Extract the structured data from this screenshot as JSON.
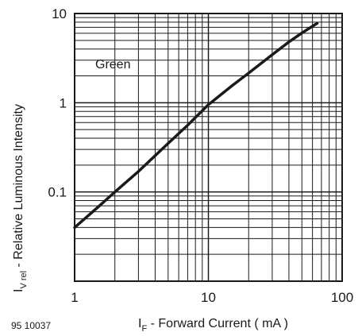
{
  "chart_data": {
    "type": "line",
    "x_scale": "log",
    "y_scale": "log",
    "xlim": [
      1,
      100
    ],
    "ylim": [
      0.01,
      10
    ],
    "x_ticks": [
      {
        "value": 1,
        "label": "1"
      },
      {
        "value": 10,
        "label": "10"
      },
      {
        "value": 100,
        "label": "100"
      }
    ],
    "y_ticks": [
      {
        "value": 10,
        "label": "10"
      },
      {
        "value": 1,
        "label": "1"
      },
      {
        "value": 0.1,
        "label": "0.1"
      }
    ],
    "grid": true,
    "series": [
      {
        "name": "Green",
        "x": [
          1,
          1.5,
          2,
          3,
          5,
          7,
          10,
          15,
          20,
          30,
          40,
          50,
          60,
          65
        ],
        "y": [
          0.04,
          0.068,
          0.1,
          0.17,
          0.35,
          0.56,
          0.95,
          1.55,
          2.15,
          3.45,
          4.8,
          6.05,
          7.2,
          7.75
        ]
      }
    ],
    "ylabel_main": "I",
    "ylabel_sub": "V rel",
    "ylabel_rest": " - Relative Luminous Intensity",
    "xlabel_main": "I",
    "xlabel_sub": "F",
    "xlabel_rest": " - Forward Current ( mA )",
    "figure_code": "95 10037",
    "line_color": "#1a1a1a"
  }
}
